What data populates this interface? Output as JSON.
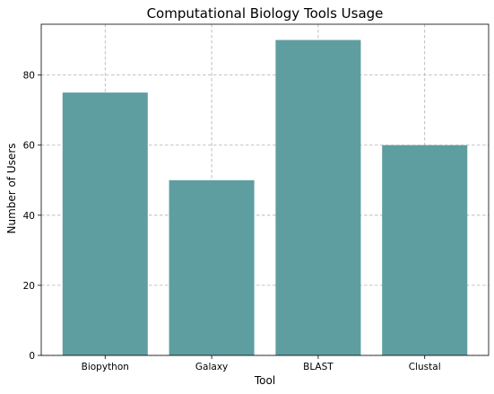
{
  "colors": {
    "bar": "#5f9ea0",
    "grid": "#b0b0b0",
    "axis": "#000000",
    "background": "#ffffff"
  },
  "chart_data": {
    "type": "bar",
    "title": "Computational Biology Tools Usage",
    "xlabel": "Tool",
    "ylabel": "Number of Users",
    "categories": [
      "Biopython",
      "Galaxy",
      "BLAST",
      "Clustal"
    ],
    "values": [
      75,
      50,
      90,
      60
    ],
    "ylim": [
      0,
      94.5
    ],
    "yticks": [
      0,
      20,
      40,
      60,
      80
    ],
    "grid": true,
    "grid_style": "dashed",
    "legend": false
  }
}
